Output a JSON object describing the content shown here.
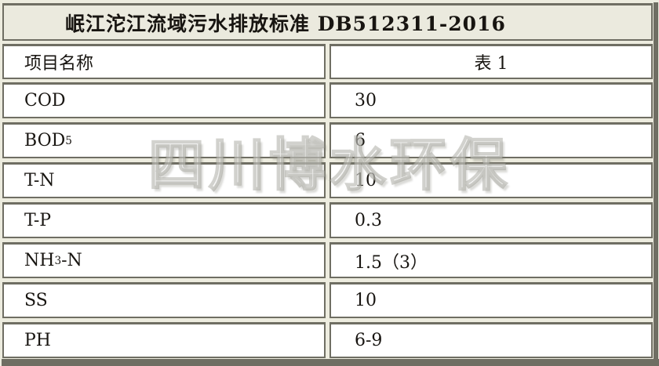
{
  "table": {
    "title": "岷江沱江流域污水排放标准 DB512311-2016",
    "header": {
      "param_col": "项目名称",
      "value_col": "表 1"
    },
    "rows": [
      {
        "param": "COD",
        "sub": "",
        "suffix": "",
        "value": "30"
      },
      {
        "param": "BOD",
        "sub": "5",
        "suffix": "",
        "value": "6"
      },
      {
        "param": "T-N",
        "sub": "",
        "suffix": "",
        "value": "10"
      },
      {
        "param": "T-P",
        "sub": "",
        "suffix": "",
        "value": "0.3"
      },
      {
        "param": "NH",
        "sub": "3",
        "suffix": "-N",
        "value": "1.5（3）"
      },
      {
        "param": "SS",
        "sub": "",
        "suffix": "",
        "value": "10"
      },
      {
        "param": "PH",
        "sub": "",
        "suffix": "",
        "value": "6-9"
      }
    ]
  },
  "watermark": "四川博水环保",
  "colors": {
    "page_background": "#EDECDF",
    "title_background": "#EBEADE",
    "cell_background": "#FFFFFF",
    "border": "#6F6E63",
    "text": "#181511",
    "watermark_gray": "#94938A"
  }
}
